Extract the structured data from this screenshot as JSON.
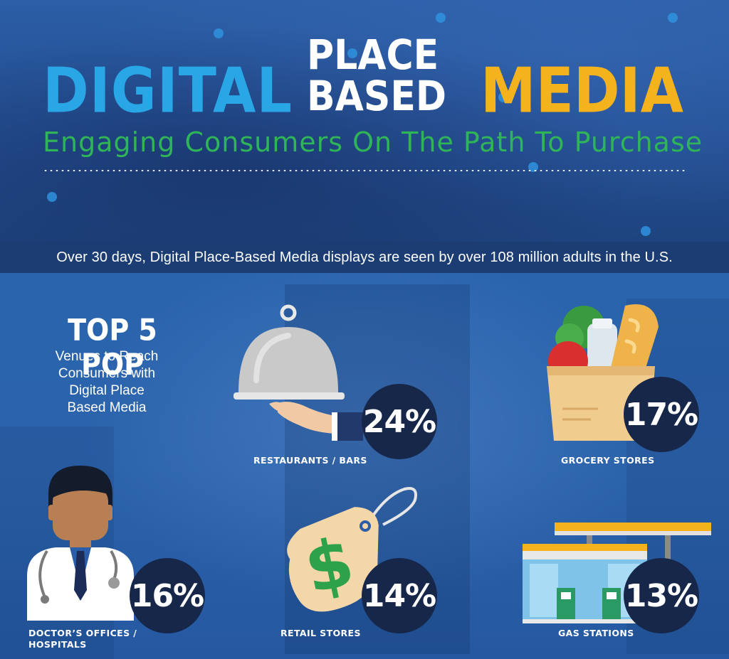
{
  "header": {
    "title_word1": "DIGITAL",
    "title_word2": "PLACE BASED",
    "title_word3": "MEDIA",
    "subtitle": "Engaging Consumers On The Path To Purchase"
  },
  "banner": {
    "text": "Over 30 days, Digital Place-Based Media displays are seen by over 108 million adults in the U.S."
  },
  "top5": {
    "title": "TOP 5 POP",
    "subtitle_lines": [
      "Venues to Reach",
      "Consumers with",
      "Digital Place",
      "Based Media"
    ]
  },
  "venues": [
    {
      "label": "RESTAURANTS / BARS",
      "percent": "24%",
      "icon": "cloche-icon"
    },
    {
      "label": "GROCERY STORES",
      "percent": "17%",
      "icon": "grocery-bag-icon"
    },
    {
      "label_lines": [
        "DOCTOR’S OFFICES /",
        "HOSPITALS"
      ],
      "percent": "16%",
      "icon": "doctor-icon"
    },
    {
      "label": "RETAIL STORES",
      "percent": "14%",
      "icon": "price-tag-icon"
    },
    {
      "label": "GAS STATIONS",
      "percent": "13%",
      "icon": "gas-station-icon"
    }
  ],
  "colors": {
    "digital": "#29a6e6",
    "media": "#f4b21c",
    "subtitle": "#2fb458",
    "banner": "#1b3d73",
    "circle": "#16274a"
  }
}
